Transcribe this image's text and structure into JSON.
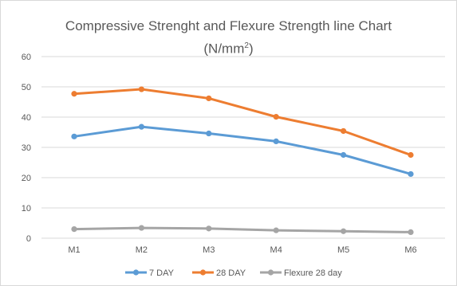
{
  "chart_data": {
    "type": "line",
    "title_line1": "Compressive Strenght and Flexure Strength line Chart",
    "title_line2_main": "(N/mm",
    "title_line2_sup": "2",
    "title_line2_end": ")",
    "categories": [
      "M1",
      "M2",
      "M3",
      "M4",
      "M5",
      "M6"
    ],
    "ylim": [
      0,
      60
    ],
    "yticks": [
      "0",
      "10",
      "20",
      "30",
      "40",
      "50",
      "60"
    ],
    "grid": true,
    "legend_position": "bottom",
    "series": [
      {
        "name": "7 DAY",
        "color": "#5b9bd5",
        "values": [
          33.6,
          36.8,
          34.6,
          32.0,
          27.5,
          21.2
        ]
      },
      {
        "name": "28 DAY",
        "color": "#ed7d31",
        "values": [
          47.7,
          49.2,
          46.2,
          40.1,
          35.4,
          27.5
        ]
      },
      {
        "name": "Flexure 28 day",
        "color": "#a5a5a5",
        "values": [
          3.0,
          3.4,
          3.2,
          2.6,
          2.3,
          2.0
        ]
      }
    ]
  }
}
